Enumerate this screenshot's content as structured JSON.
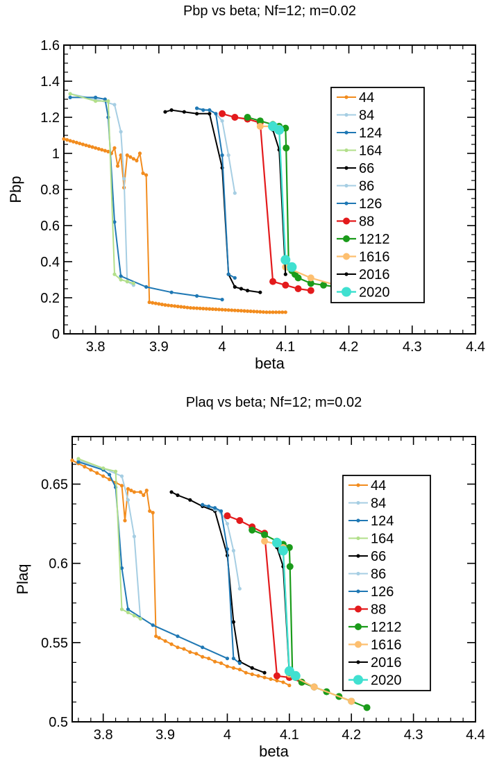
{
  "chart_data": [
    {
      "type": "line",
      "title": "Pbp vs beta; Nf=12; m=0.02",
      "xlabel": "beta",
      "ylabel": "Pbp",
      "xlim": [
        3.75,
        4.4
      ],
      "ylim": [
        0,
        1.6
      ],
      "xticks": [
        "3.8",
        "3.9",
        "4",
        "4.1",
        "4.2",
        "4.3",
        "4.4"
      ],
      "yticks": [
        "0",
        "0.2",
        "0.4",
        "0.6",
        "0.8",
        "1",
        "1.2",
        "1.4",
        "1.6"
      ],
      "grid": false,
      "legend_position": "right",
      "series": [
        {
          "name": "44",
          "color": "#f28c1e",
          "marker": "small",
          "x": [
            3.75,
            3.755,
            3.76,
            3.765,
            3.77,
            3.775,
            3.78,
            3.785,
            3.79,
            3.795,
            3.8,
            3.805,
            3.81,
            3.815,
            3.82,
            3.825,
            3.83,
            3.835,
            3.84,
            3.845,
            3.85,
            3.855,
            3.86,
            3.865,
            3.87,
            3.875,
            3.88,
            3.885,
            3.89,
            3.895,
            3.9,
            3.905,
            3.91,
            3.915,
            3.92,
            3.925,
            3.93,
            3.935,
            3.94,
            3.945,
            3.95,
            3.955,
            3.96,
            3.965,
            3.97,
            3.975,
            3.98,
            3.985,
            3.99,
            3.995,
            4.0,
            4.005,
            4.01,
            4.015,
            4.02,
            4.025,
            4.03,
            4.035,
            4.04,
            4.045,
            4.05,
            4.055,
            4.06,
            4.065,
            4.07,
            4.075,
            4.08,
            4.085,
            4.09,
            4.095,
            4.1
          ],
          "y": [
            1.08,
            1.075,
            1.07,
            1.065,
            1.06,
            1.055,
            1.05,
            1.045,
            1.04,
            1.035,
            1.03,
            1.025,
            1.02,
            1.015,
            1.01,
            1.0,
            1.03,
            0.93,
            0.99,
            0.81,
            0.99,
            0.98,
            0.97,
            0.96,
            1.0,
            0.89,
            0.88,
            0.175,
            0.172,
            0.169,
            0.166,
            0.163,
            0.16,
            0.158,
            0.156,
            0.154,
            0.152,
            0.15,
            0.148,
            0.146,
            0.144,
            0.143,
            0.142,
            0.141,
            0.14,
            0.139,
            0.138,
            0.137,
            0.136,
            0.135,
            0.134,
            0.133,
            0.132,
            0.131,
            0.13,
            0.129,
            0.128,
            0.127,
            0.126,
            0.125,
            0.124,
            0.123,
            0.122,
            0.121,
            0.12,
            0.12,
            0.12,
            0.12,
            0.12,
            0.12,
            0.12
          ]
        },
        {
          "name": "84",
          "color": "#a6cee3",
          "marker": "small",
          "x": [
            3.76,
            3.8,
            3.83,
            3.84,
            3.845,
            3.85,
            3.86
          ],
          "y": [
            1.33,
            1.3,
            1.27,
            1.12,
            0.86,
            0.29,
            0.27
          ]
        },
        {
          "name": "124",
          "color": "#1f78b4",
          "marker": "small",
          "x": [
            3.76,
            3.8,
            3.815,
            3.82,
            3.83,
            3.84,
            3.88,
            3.92,
            3.96,
            4.0
          ],
          "y": [
            1.31,
            1.31,
            1.3,
            1.2,
            0.62,
            0.32,
            0.26,
            0.23,
            0.21,
            0.19
          ]
        },
        {
          "name": "164",
          "color": "#b2df8a",
          "marker": "small",
          "x": [
            3.76,
            3.8,
            3.82,
            3.83,
            3.84,
            3.85,
            3.86
          ],
          "y": [
            1.33,
            1.29,
            1.29,
            0.33,
            0.3,
            0.29,
            0.28
          ]
        },
        {
          "name": "66",
          "color": "#000000",
          "marker": "small",
          "x": [
            3.91,
            3.92,
            3.94,
            3.96,
            3.98,
            4.0,
            4.01,
            4.02,
            4.03,
            4.04,
            4.06
          ],
          "y": [
            1.23,
            1.24,
            1.23,
            1.22,
            1.22,
            0.92,
            0.33,
            0.26,
            0.25,
            0.24,
            0.23
          ]
        },
        {
          "name": "86",
          "color": "#a6cee3",
          "marker": "small",
          "x": [
            3.96,
            3.98,
            3.99,
            4.0,
            4.01,
            4.02
          ],
          "y": [
            1.25,
            1.24,
            1.22,
            1.18,
            0.99,
            0.78
          ]
        },
        {
          "name": "126",
          "color": "#1f78b4",
          "marker": "small",
          "x": [
            3.96,
            3.97,
            3.98,
            3.99,
            4.0,
            4.01,
            4.02
          ],
          "y": [
            1.25,
            1.24,
            1.24,
            1.22,
            0.99,
            0.33,
            0.31
          ]
        },
        {
          "name": "88",
          "color": "#e31a1c",
          "marker": "medium",
          "x": [
            4.0,
            4.02,
            4.04,
            4.06,
            4.08,
            4.1,
            4.12,
            4.14
          ],
          "y": [
            1.22,
            1.2,
            1.19,
            1.17,
            0.29,
            0.27,
            0.25,
            0.24
          ]
        },
        {
          "name": "1212",
          "color": "#1a9b1a",
          "marker": "medium",
          "x": [
            4.04,
            4.06,
            4.08,
            4.09,
            4.1,
            4.101,
            4.105,
            4.11,
            4.115,
            4.12,
            4.14,
            4.16,
            4.18,
            4.2,
            4.22
          ],
          "y": [
            1.2,
            1.18,
            1.16,
            1.15,
            1.14,
            1.03,
            0.37,
            0.35,
            0.33,
            0.31,
            0.28,
            0.27,
            0.26,
            0.25,
            0.24
          ]
        },
        {
          "name": "1616",
          "color": "#fdbf6f",
          "marker": "medium",
          "x": [
            4.06,
            4.08,
            4.09,
            4.1,
            4.14,
            4.2
          ],
          "y": [
            1.15,
            1.15,
            1.14,
            0.37,
            0.31,
            0.25
          ]
        },
        {
          "name": "2016",
          "color": "#000000",
          "marker": "small",
          "x": [
            4.08,
            4.09,
            4.1
          ],
          "y": [
            1.13,
            1.02,
            0.33
          ]
        },
        {
          "name": "2020",
          "color": "#40e0d0",
          "marker": "large",
          "x": [
            4.08,
            4.09,
            4.1,
            4.11
          ],
          "y": [
            1.15,
            1.13,
            0.41,
            0.37
          ]
        }
      ]
    },
    {
      "type": "line",
      "title": "Plaq vs beta; Nf=12; m=0.02",
      "xlabel": "beta",
      "ylabel": "Plaq",
      "xlim": [
        3.75,
        4.4
      ],
      "ylim": [
        0.5,
        0.68
      ],
      "xticks": [
        "3.8",
        "3.9",
        "4",
        "4.1",
        "4.2",
        "4.3",
        "4.4"
      ],
      "yticks": [
        "0.5",
        "0.55",
        "0.6",
        "0.65"
      ],
      "grid": false,
      "legend_position": "right",
      "series": [
        {
          "name": "44",
          "color": "#f28c1e",
          "marker": "small",
          "x": [
            3.75,
            3.76,
            3.77,
            3.78,
            3.79,
            3.8,
            3.81,
            3.82,
            3.83,
            3.835,
            3.84,
            3.845,
            3.85,
            3.86,
            3.865,
            3.87,
            3.875,
            3.88,
            3.885,
            3.89,
            3.9,
            3.91,
            3.92,
            3.93,
            3.94,
            3.95,
            3.96,
            3.97,
            3.98,
            3.99,
            4.0,
            4.01,
            4.02,
            4.03,
            4.04,
            4.05,
            4.06,
            4.07,
            4.08,
            4.09,
            4.1
          ],
          "y": [
            0.665,
            0.663,
            0.661,
            0.659,
            0.657,
            0.655,
            0.653,
            0.651,
            0.649,
            0.627,
            0.647,
            0.646,
            0.645,
            0.645,
            0.643,
            0.646,
            0.633,
            0.632,
            0.554,
            0.553,
            0.551,
            0.549,
            0.547,
            0.546,
            0.544,
            0.543,
            0.541,
            0.54,
            0.538,
            0.537,
            0.535,
            0.534,
            0.533,
            0.531,
            0.53,
            0.529,
            0.528,
            0.527,
            0.526,
            0.525,
            0.523
          ]
        },
        {
          "name": "84",
          "color": "#a6cee3",
          "marker": "small",
          "x": [
            3.76,
            3.8,
            3.83,
            3.84,
            3.85,
            3.86
          ],
          "y": [
            0.665,
            0.66,
            0.655,
            0.64,
            0.617,
            0.565
          ]
        },
        {
          "name": "124",
          "color": "#1f78b4",
          "marker": "small",
          "x": [
            3.76,
            3.8,
            3.81,
            3.82,
            3.83,
            3.84,
            3.88,
            3.92,
            3.96,
            4.0
          ],
          "y": [
            0.664,
            0.659,
            0.656,
            0.648,
            0.597,
            0.571,
            0.561,
            0.554,
            0.547,
            0.54
          ]
        },
        {
          "name": "164",
          "color": "#b2df8a",
          "marker": "small",
          "x": [
            3.76,
            3.8,
            3.82,
            3.83,
            3.84,
            3.85,
            3.86
          ],
          "y": [
            0.666,
            0.66,
            0.658,
            0.571,
            0.569,
            0.567,
            0.565
          ]
        },
        {
          "name": "66",
          "color": "#000000",
          "marker": "small",
          "x": [
            3.91,
            3.92,
            3.94,
            3.96,
            3.98,
            4.0,
            4.01,
            4.02,
            4.04,
            4.06
          ],
          "y": [
            0.645,
            0.643,
            0.64,
            0.636,
            0.633,
            0.605,
            0.563,
            0.538,
            0.534,
            0.531
          ]
        },
        {
          "name": "86",
          "color": "#a6cee3",
          "marker": "small",
          "x": [
            3.96,
            3.98,
            3.99,
            4.0,
            4.01,
            4.02
          ],
          "y": [
            0.637,
            0.634,
            0.632,
            0.625,
            0.608,
            0.584
          ]
        },
        {
          "name": "126",
          "color": "#1f78b4",
          "marker": "small",
          "x": [
            3.96,
            3.97,
            3.98,
            3.99,
            4.0,
            4.01,
            4.02
          ],
          "y": [
            0.637,
            0.636,
            0.635,
            0.633,
            0.609,
            0.54,
            0.537
          ]
        },
        {
          "name": "88",
          "color": "#e31a1c",
          "marker": "medium",
          "x": [
            4.0,
            4.02,
            4.04,
            4.06,
            4.08,
            4.1,
            4.12,
            4.14
          ],
          "y": [
            0.63,
            0.627,
            0.623,
            0.619,
            0.529,
            0.528,
            0.525,
            0.522
          ]
        },
        {
          "name": "1212",
          "color": "#1a9b1a",
          "marker": "medium",
          "x": [
            4.04,
            4.06,
            4.08,
            4.09,
            4.1,
            4.101,
            4.105,
            4.11,
            4.12,
            4.14,
            4.16,
            4.18,
            4.2,
            4.225
          ],
          "y": [
            0.621,
            0.618,
            0.614,
            0.612,
            0.61,
            0.598,
            0.53,
            0.528,
            0.525,
            0.522,
            0.519,
            0.516,
            0.513,
            0.509
          ]
        },
        {
          "name": "1616",
          "color": "#fdbf6f",
          "marker": "medium",
          "x": [
            4.06,
            4.08,
            4.09,
            4.1,
            4.14,
            4.2
          ],
          "y": [
            0.614,
            0.612,
            0.61,
            0.53,
            0.522,
            0.513
          ]
        },
        {
          "name": "2016",
          "color": "#000000",
          "marker": "small",
          "x": [
            4.08,
            4.09,
            4.1
          ],
          "y": [
            0.61,
            0.598,
            0.53
          ]
        },
        {
          "name": "2020",
          "color": "#40e0d0",
          "marker": "large",
          "x": [
            4.08,
            4.09,
            4.1,
            4.11
          ],
          "y": [
            0.613,
            0.608,
            0.532,
            0.529
          ]
        }
      ]
    }
  ]
}
